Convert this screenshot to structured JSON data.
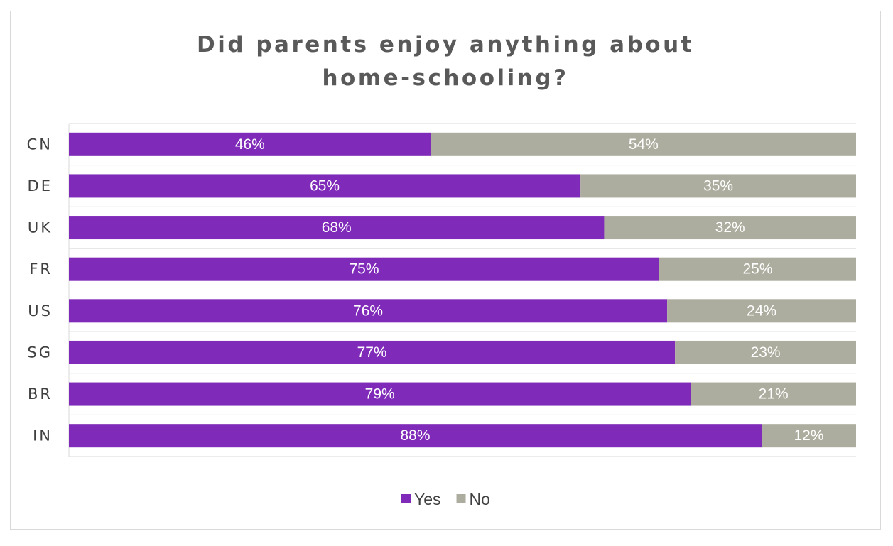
{
  "chart_data": {
    "type": "stacked-bar-horizontal",
    "title": "Did parents enjoy anything about home-schooling?",
    "categories": [
      "CN",
      "DE",
      "UK",
      "FR",
      "US",
      "SG",
      "BR",
      "IN"
    ],
    "series": [
      {
        "name": "Yes",
        "color": "#7f2ab8",
        "values": [
          46,
          65,
          68,
          75,
          76,
          77,
          79,
          88
        ],
        "value_labels": [
          "46%",
          "65%",
          "68%",
          "75%",
          "76%",
          "77%",
          "79%",
          "88%"
        ]
      },
      {
        "name": "No",
        "color": "#adad9f",
        "values": [
          54,
          35,
          32,
          25,
          24,
          23,
          21,
          12
        ],
        "value_labels": [
          "54%",
          "35%",
          "32%",
          "25%",
          "24%",
          "23%",
          "21%",
          "12%"
        ]
      }
    ],
    "xlim": [
      0,
      100
    ],
    "legend": "bottom"
  }
}
